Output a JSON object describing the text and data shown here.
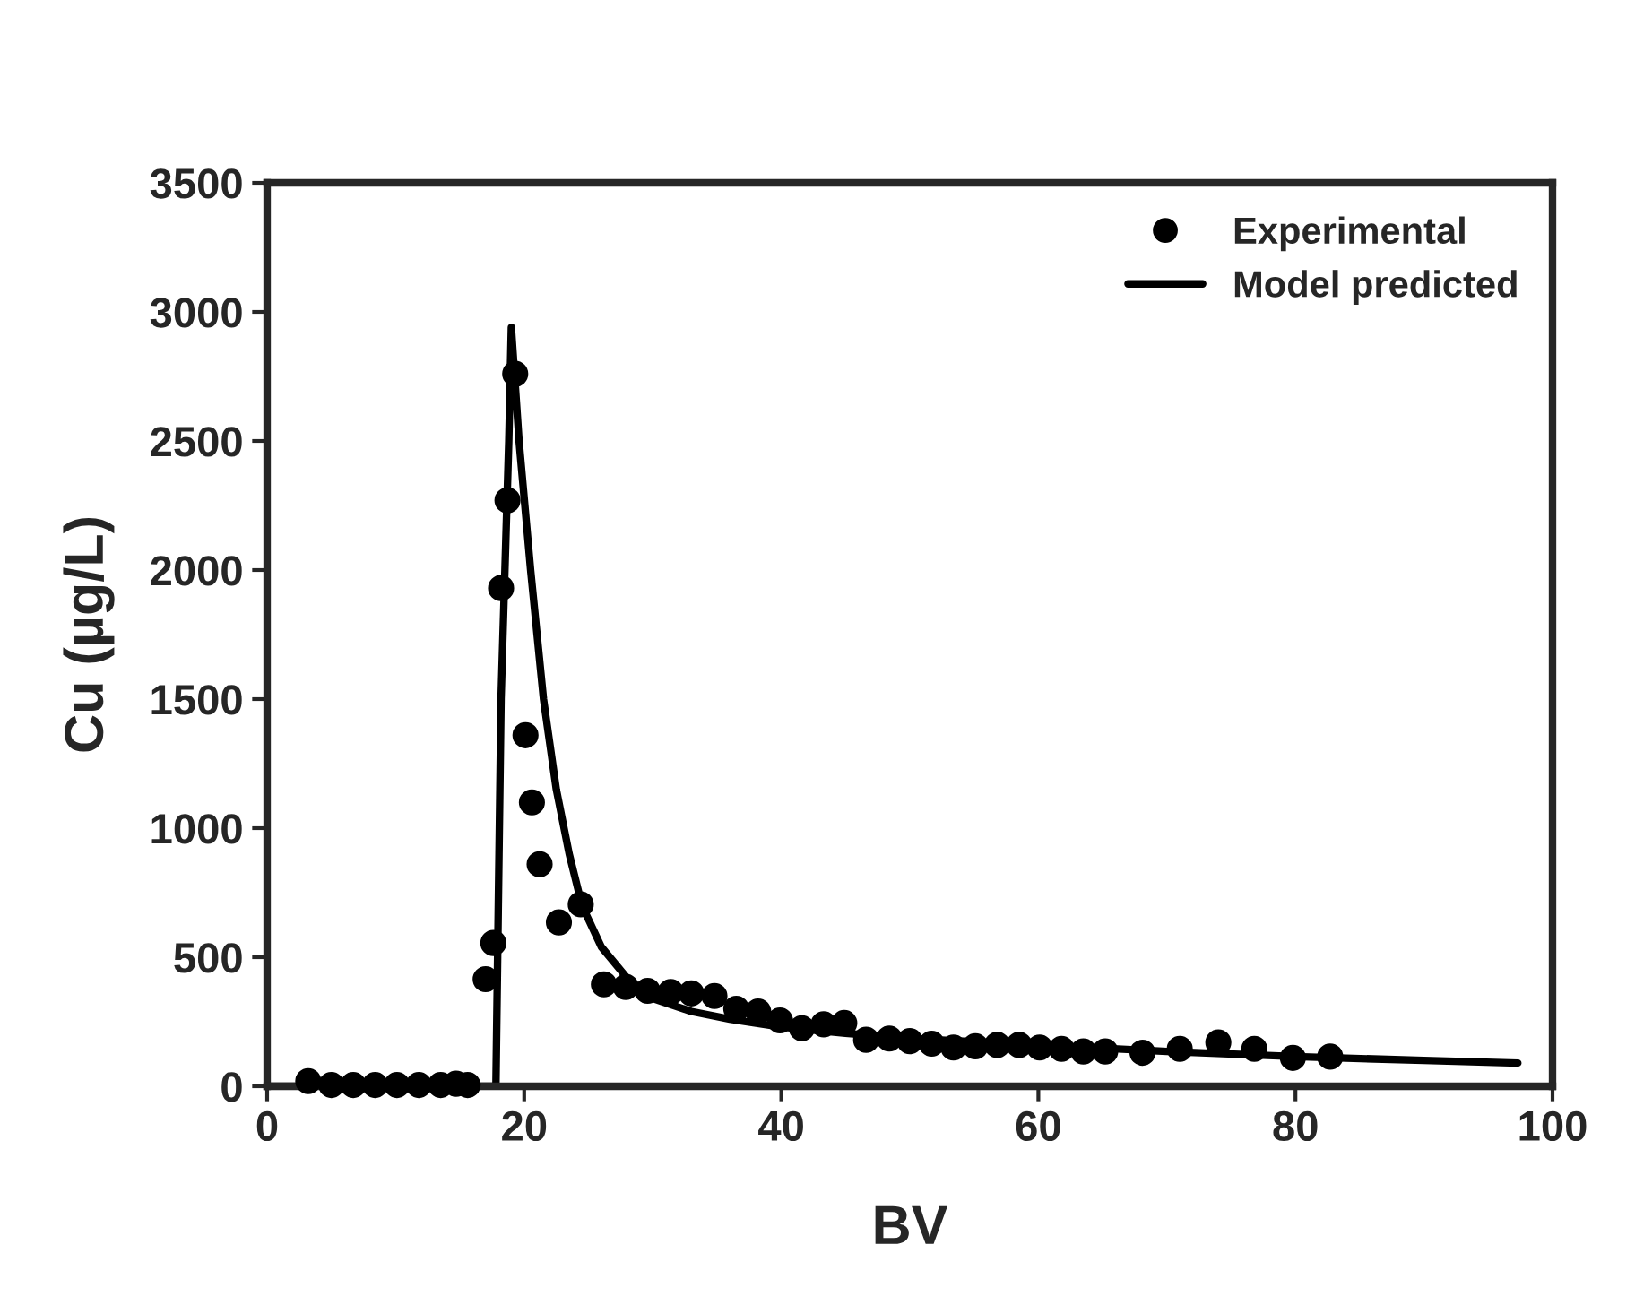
{
  "chart_data": {
    "type": "scatter",
    "xlabel": "BV",
    "ylabel": "Cu (µg/L)",
    "xlim": [
      0,
      100
    ],
    "ylim": [
      0,
      3500
    ],
    "xticks": [
      0,
      20,
      40,
      60,
      80,
      100
    ],
    "yticks": [
      0,
      500,
      1000,
      1500,
      2000,
      2500,
      3000,
      3500
    ],
    "grid": false,
    "legend": "top right",
    "series": [
      {
        "name": "Experimental",
        "marker": "circle",
        "color": "#000000",
        "x": [
          3.2,
          5,
          6.7,
          8.4,
          10.1,
          11.8,
          13.5,
          14.7,
          15.6,
          17,
          17.6,
          18.2,
          18.7,
          19.3,
          20.1,
          20.6,
          21.2,
          22.7,
          24.4,
          26.2,
          27.9,
          29.6,
          31.4,
          33,
          34.8,
          36.5,
          38.2,
          39.9,
          41.6,
          43.3,
          44.9,
          46.6,
          48.4,
          50,
          51.7,
          53.4,
          55.1,
          56.8,
          58.5,
          60.1,
          61.8,
          63.5,
          65.2,
          68.1,
          71,
          74,
          76.8,
          79.8,
          82.7
        ],
        "values": [
          20,
          5,
          5,
          5,
          5,
          5,
          5,
          10,
          5,
          415,
          555,
          1930,
          2270,
          2760,
          1360,
          1100,
          860,
          635,
          705,
          395,
          385,
          370,
          365,
          360,
          350,
          300,
          290,
          255,
          225,
          240,
          245,
          180,
          185,
          175,
          165,
          150,
          155,
          160,
          160,
          150,
          145,
          135,
          135,
          130,
          145,
          170,
          145,
          110,
          115
        ]
      },
      {
        "name": "Model predicted",
        "type": "line",
        "marker": "none",
        "line_style": "solid",
        "color": "#000000",
        "x": [
          0,
          17.8,
          18.2,
          18.8,
          19.0,
          19.6,
          20.5,
          21.5,
          22.5,
          23.5,
          24.5,
          26,
          28,
          30,
          33,
          36,
          40,
          45,
          50,
          60,
          70,
          80,
          90,
          97.3
        ],
        "values": [
          0,
          0,
          1500,
          2500,
          2940,
          2500,
          2000,
          1500,
          1150,
          900,
          700,
          540,
          420,
          340,
          290,
          260,
          230,
          205,
          185,
          160,
          135,
          115,
          100,
          90
        ]
      }
    ]
  }
}
